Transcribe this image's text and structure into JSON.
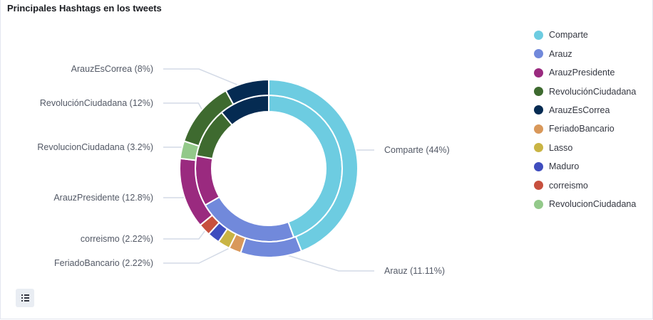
{
  "panel": {
    "title": "Principales Hashtags en los tweets"
  },
  "chart_data": {
    "type": "pie",
    "title": "Principales Hashtags en los tweets",
    "donut": true,
    "rings": [
      {
        "ring": "inner",
        "slices": [
          {
            "name": "Comparte",
            "value": 44.44,
            "color": "#6DCCE1"
          },
          {
            "name": "Arauz",
            "value": 22.22,
            "color": "#7189DB"
          },
          {
            "name": "ArauzPresidente",
            "value": 11.11,
            "color": "#9A2A7F"
          },
          {
            "name": "RevoluciónCiudadana",
            "value": 11.11,
            "color": "#3E6A2F"
          },
          {
            "name": "ArauzEsCorrea",
            "value": 11.11,
            "color": "#052B52"
          }
        ]
      },
      {
        "ring": "outer",
        "slices": [
          {
            "name": "Comparte",
            "value": 44,
            "color": "#6DCCE1",
            "label": "Comparte (44%)"
          },
          {
            "name": "Arauz",
            "value": 11.11,
            "color": "#7189DB",
            "label": "Arauz (11.11%)"
          },
          {
            "name": "FeriadoBancario",
            "value": 2.22,
            "color": "#D9985A",
            "label": "FeriadoBancario (2.22%)"
          },
          {
            "name": "Lasso",
            "value": 2.22,
            "color": "#C9B444",
            "label": ""
          },
          {
            "name": "Maduro",
            "value": 2.22,
            "color": "#3F4DBE",
            "label": ""
          },
          {
            "name": "correismo",
            "value": 2.22,
            "color": "#C7503E",
            "label": "correismo (2.22%)"
          },
          {
            "name": "ArauzPresidente",
            "value": 12.8,
            "color": "#9A2A7F",
            "label": "ArauzPresidente (12.8%)"
          },
          {
            "name": "RevolucionCiudadana",
            "value": 3.2,
            "color": "#93C98A",
            "label": "RevolucionCiudadana (3.2%)"
          },
          {
            "name": "RevoluciónCiudadana",
            "value": 12,
            "color": "#3E6A2F",
            "label": "RevoluciónCiudadana (12%)"
          },
          {
            "name": "ArauzEsCorrea",
            "value": 8,
            "color": "#052B52",
            "label": "ArauzEsCorrea (8%)"
          }
        ]
      }
    ],
    "legend_position": "right",
    "legend": [
      {
        "label": "Comparte",
        "color": "#6DCCE1"
      },
      {
        "label": "Arauz",
        "color": "#7189DB"
      },
      {
        "label": "ArauzPresidente",
        "color": "#9A2A7F"
      },
      {
        "label": "RevoluciónCiudadana",
        "color": "#3E6A2F"
      },
      {
        "label": "ArauzEsCorrea",
        "color": "#052B52"
      },
      {
        "label": "FeriadoBancario",
        "color": "#D9985A"
      },
      {
        "label": "Lasso",
        "color": "#C9B444"
      },
      {
        "label": "Maduro",
        "color": "#3F4DBE"
      },
      {
        "label": "correismo",
        "color": "#C7503E"
      },
      {
        "label": "RevolucionCiudadana",
        "color": "#93C98A"
      }
    ]
  },
  "icons": {
    "legend_toggle": "list-icon"
  }
}
